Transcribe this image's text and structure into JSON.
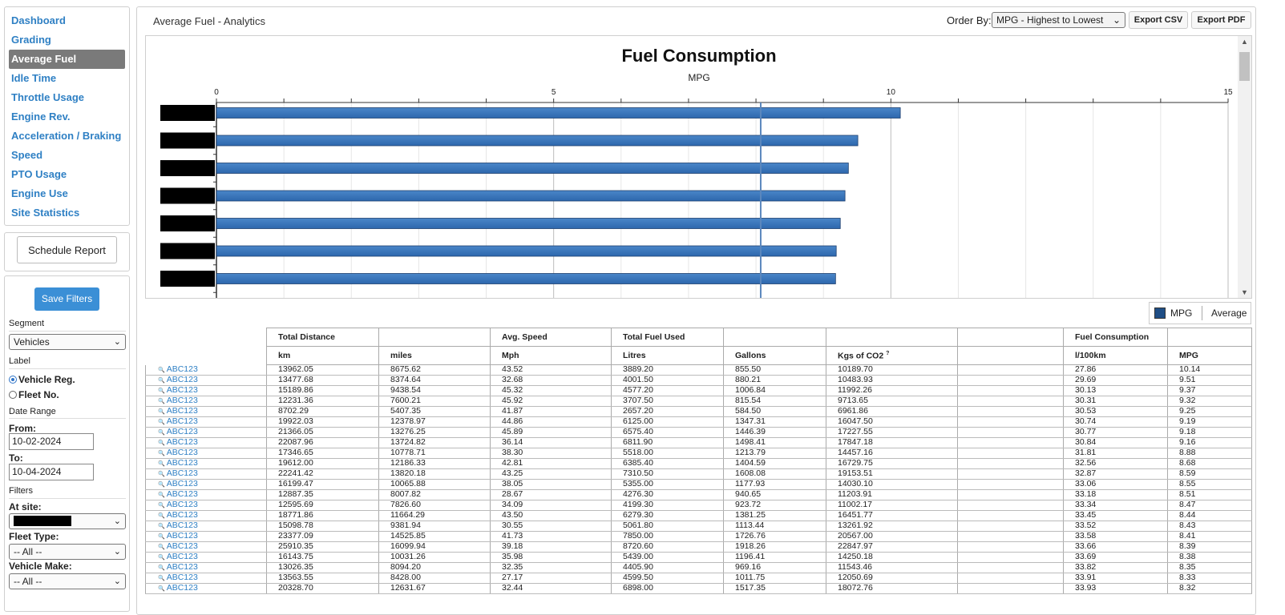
{
  "sidebar": {
    "items": [
      {
        "label": "Dashboard",
        "active": false
      },
      {
        "label": "Grading",
        "active": false
      },
      {
        "label": "Average Fuel",
        "active": true
      },
      {
        "label": "Idle Time",
        "active": false
      },
      {
        "label": "Throttle Usage",
        "active": false
      },
      {
        "label": "Engine Rev.",
        "active": false
      },
      {
        "label": "Acceleration / Braking",
        "active": false
      },
      {
        "label": "Speed",
        "active": false
      },
      {
        "label": "PTO Usage",
        "active": false
      },
      {
        "label": "Engine Use",
        "active": false
      },
      {
        "label": "Site Statistics",
        "active": false
      }
    ],
    "schedule_label": "Schedule Report"
  },
  "filters": {
    "save_label": "Save Filters",
    "segment_label": "Segment",
    "segment_value": "Vehicles",
    "label_label": "Label",
    "radio_vehicle": "Vehicle Reg.",
    "radio_fleet": "Fleet No.",
    "date_range_label": "Date Range",
    "from_label": "From:",
    "from_value": "10-02-2024",
    "to_label": "To:",
    "to_value": "10-04-2024",
    "filters_label": "Filters",
    "site_label": "At site:",
    "fleet_type_label": "Fleet Type:",
    "fleet_type_value": "-- All --",
    "vehicle_make_label": "Vehicle Make:",
    "vehicle_make_value": "-- All --"
  },
  "header": {
    "title": "Average Fuel - Analytics",
    "order_by_label": "Order By:",
    "order_by_value": "MPG - Highest to Lowest",
    "export_csv": "Export CSV",
    "export_pdf": "Export PDF"
  },
  "chart_data": {
    "type": "bar",
    "orientation": "horizontal",
    "title": "Fuel Consumption",
    "xlabel": "MPG",
    "xlim": [
      0,
      15
    ],
    "xticks": [
      "0",
      "5",
      "10",
      "15"
    ],
    "grid": true,
    "categories_redacted": true,
    "series": [
      {
        "name": "MPG",
        "values": [
          10.14,
          9.51,
          9.37,
          9.32,
          9.25,
          9.19,
          9.18
        ]
      }
    ],
    "average": 8.07,
    "bar_color": "#2d67ad"
  },
  "legend": {
    "mpg": "MPG",
    "average": "Average"
  },
  "table": {
    "group_headers": [
      "",
      "Total Distance",
      "",
      "Avg. Speed",
      "Total Fuel Used",
      "",
      "",
      "",
      "Fuel Consumption",
      ""
    ],
    "sub_headers": [
      "",
      "km",
      "miles",
      "Mph",
      "Litres",
      "Gallons",
      "Kgs of CO2",
      "",
      "l/100km",
      "MPG"
    ],
    "co2_note": "?",
    "rows": [
      [
        "ABC123",
        "13962.05",
        "8675.62",
        "43.52",
        "3889.20",
        "855.50",
        "10189.70",
        "",
        "27.86",
        "10.14"
      ],
      [
        "ABC123",
        "13477.68",
        "8374.64",
        "32.68",
        "4001.50",
        "880.21",
        "10483.93",
        "",
        "29.69",
        "9.51"
      ],
      [
        "ABC123",
        "15189.86",
        "9438.54",
        "45.32",
        "4577.20",
        "1006.84",
        "11992.26",
        "",
        "30.13",
        "9.37"
      ],
      [
        "ABC123",
        "12231.36",
        "7600.21",
        "45.92",
        "3707.50",
        "815.54",
        "9713.65",
        "",
        "30.31",
        "9.32"
      ],
      [
        "ABC123",
        "8702.29",
        "5407.35",
        "41.87",
        "2657.20",
        "584.50",
        "6961.86",
        "",
        "30.53",
        "9.25"
      ],
      [
        "ABC123",
        "19922.03",
        "12378.97",
        "44.86",
        "6125.00",
        "1347.31",
        "16047.50",
        "",
        "30.74",
        "9.19"
      ],
      [
        "ABC123",
        "21366.05",
        "13276.25",
        "45.89",
        "6575.40",
        "1446.39",
        "17227.55",
        "",
        "30.77",
        "9.18"
      ],
      [
        "ABC123",
        "22087.96",
        "13724.82",
        "36.14",
        "6811.90",
        "1498.41",
        "17847.18",
        "",
        "30.84",
        "9.16"
      ],
      [
        "ABC123",
        "17346.65",
        "10778.71",
        "38.30",
        "5518.00",
        "1213.79",
        "14457.16",
        "",
        "31.81",
        "8.88"
      ],
      [
        "ABC123",
        "19612.00",
        "12186.33",
        "42.81",
        "6385.40",
        "1404.59",
        "16729.75",
        "",
        "32.56",
        "8.68"
      ],
      [
        "ABC123",
        "22241.42",
        "13820.18",
        "43.25",
        "7310.50",
        "1608.08",
        "19153.51",
        "",
        "32.87",
        "8.59"
      ],
      [
        "ABC123",
        "16199.47",
        "10065.88",
        "38.05",
        "5355.00",
        "1177.93",
        "14030.10",
        "",
        "33.06",
        "8.55"
      ],
      [
        "ABC123",
        "12887.35",
        "8007.82",
        "28.67",
        "4276.30",
        "940.65",
        "11203.91",
        "",
        "33.18",
        "8.51"
      ],
      [
        "ABC123",
        "12595.69",
        "7826.60",
        "34.09",
        "4199.30",
        "923.72",
        "11002.17",
        "",
        "33.34",
        "8.47"
      ],
      [
        "ABC123",
        "18771.86",
        "11664.29",
        "43.50",
        "6279.30",
        "1381.25",
        "16451.77",
        "",
        "33.45",
        "8.44"
      ],
      [
        "ABC123",
        "15098.78",
        "9381.94",
        "30.55",
        "5061.80",
        "1113.44",
        "13261.92",
        "",
        "33.52",
        "8.43"
      ],
      [
        "ABC123",
        "23377.09",
        "14525.85",
        "41.73",
        "7850.00",
        "1726.76",
        "20567.00",
        "",
        "33.58",
        "8.41"
      ],
      [
        "ABC123",
        "25910.35",
        "16099.94",
        "39.18",
        "8720.60",
        "1918.26",
        "22847.97",
        "",
        "33.66",
        "8.39"
      ],
      [
        "ABC123",
        "16143.75",
        "10031.26",
        "35.98",
        "5439.00",
        "1196.41",
        "14250.18",
        "",
        "33.69",
        "8.38"
      ],
      [
        "ABC123",
        "13026.35",
        "8094.20",
        "32.35",
        "4405.90",
        "969.16",
        "11543.46",
        "",
        "33.82",
        "8.35"
      ],
      [
        "ABC123",
        "13563.55",
        "8428.00",
        "27.17",
        "4599.50",
        "1011.75",
        "12050.69",
        "",
        "33.91",
        "8.33"
      ],
      [
        "ABC123",
        "20328.70",
        "12631.67",
        "32.44",
        "6898.00",
        "1517.35",
        "18072.76",
        "",
        "33.93",
        "8.32"
      ]
    ]
  }
}
